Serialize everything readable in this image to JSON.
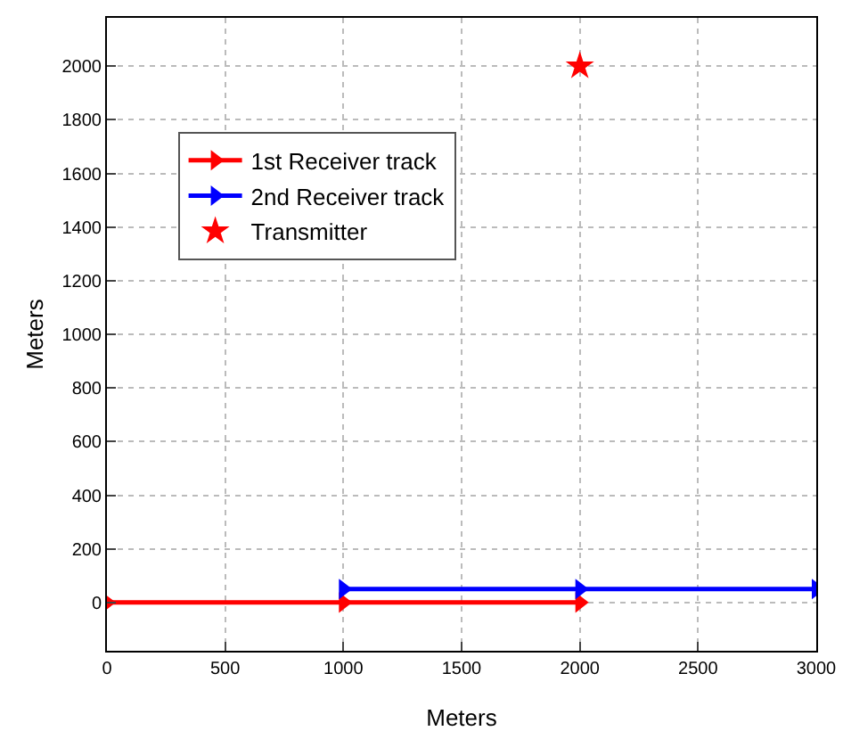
{
  "chart_data": {
    "type": "line",
    "xlabel": "Meters",
    "ylabel": "Meters",
    "xlim": [
      0,
      3000
    ],
    "xticks": [
      0,
      500,
      1000,
      1500,
      2000,
      2500,
      3000
    ],
    "ylim": [
      -180,
      2180
    ],
    "yticks": [
      0,
      200,
      400,
      600,
      800,
      1000,
      1200,
      1400,
      1600,
      1800,
      2000
    ],
    "grid": true,
    "legend": "top left",
    "marker": "triangle",
    "line_style": "solid",
    "series": [
      {
        "name": "1st Receiver track",
        "color": "#ff0000",
        "x": [
          0,
          1000,
          2000
        ],
        "values": [
          0,
          0,
          0
        ]
      },
      {
        "name": "2nd Receiver track",
        "color": "#0000ff",
        "x": [
          1000,
          2000,
          3000
        ],
        "values": [
          50,
          50,
          50
        ]
      },
      {
        "name": "Transmitter",
        "type": "scatter",
        "marker": "star",
        "color": "#ff0000",
        "x": [
          2000
        ],
        "values": [
          2000
        ]
      }
    ]
  }
}
